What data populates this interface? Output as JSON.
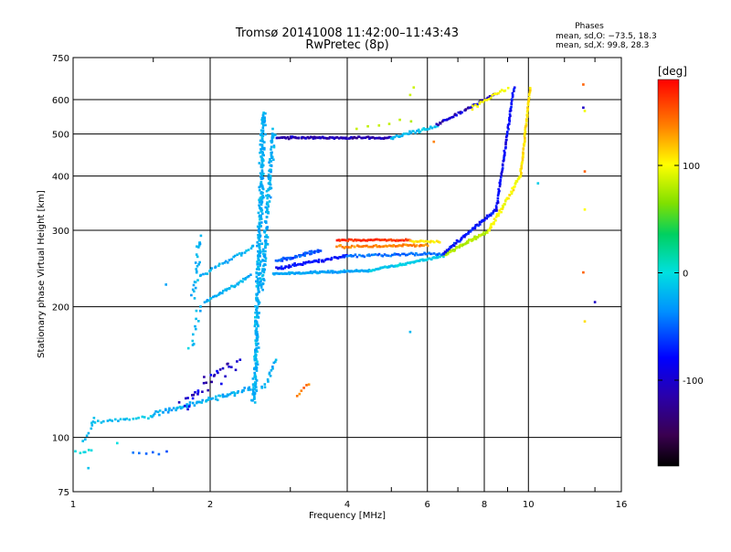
{
  "chart_data": {
    "type": "scatter",
    "title": "Tromsø 20141008 11:42:00–11:43:43",
    "subtitle": "RwPretec (8p)",
    "xlabel": "Frequency [MHz]",
    "ylabel": "Stationary phase Virtual Height [km]",
    "x_scale": "log",
    "y_scale": "log",
    "xlim": [
      1,
      16
    ],
    "ylim": [
      75,
      750
    ],
    "x_ticks": [
      1,
      2,
      4,
      6,
      8,
      10,
      16
    ],
    "y_ticks": [
      75,
      100,
      200,
      300,
      400,
      500,
      600,
      750
    ],
    "grid": true,
    "phases": {
      "title": "Phases",
      "line_o": "mean, sd,O: −73.5, 18.3",
      "line_x": "mean, sd,X:  99.8, 28.3"
    },
    "colorbar": {
      "label": "[deg]",
      "range": [
        -180,
        180
      ],
      "ticks": [
        100,
        0,
        -100
      ]
    },
    "trace_segments": [
      {
        "from": [
          1.05,
          97
        ],
        "to": [
          1.12,
          111
        ],
        "phase": -40,
        "n": 8,
        "spread": 0.015
      },
      {
        "from": [
          1.1,
          108
        ],
        "to": [
          1.5,
          112
        ],
        "phase": -35,
        "n": 22,
        "spread": 0.01
      },
      {
        "from": [
          1.5,
          113
        ],
        "to": [
          2.5,
          130
        ],
        "phase": -45,
        "n": 70,
        "spread": 0.012
      },
      {
        "from": [
          1.72,
          118
        ],
        "to": [
          2.3,
          150
        ],
        "phase": -110,
        "n": 35,
        "spread": 0.05
      },
      {
        "from": [
          1.85,
          210
        ],
        "to": [
          1.9,
          290
        ],
        "phase": -45,
        "n": 25,
        "spread": 0.03
      },
      {
        "from": [
          1.8,
          160
        ],
        "to": [
          1.92,
          200
        ],
        "phase": -40,
        "n": 12,
        "spread": 0.03
      },
      {
        "from": [
          1.95,
          205
        ],
        "to": [
          2.45,
          235
        ],
        "phase": -45,
        "n": 35,
        "spread": 0.008
      },
      {
        "from": [
          1.9,
          235
        ],
        "to": [
          2.5,
          275
        ],
        "phase": -45,
        "n": 30,
        "spread": 0.01
      },
      {
        "from": [
          2.5,
          120
        ],
        "to": [
          2.62,
          560
        ],
        "phase": -45,
        "n": 320,
        "spread": 0.02
      },
      {
        "from": [
          2.6,
          220
        ],
        "to": [
          2.75,
          510
        ],
        "phase": -45,
        "n": 140,
        "spread": 0.02
      },
      {
        "from": [
          2.62,
          130
        ],
        "to": [
          2.78,
          150
        ],
        "phase": -45,
        "n": 15,
        "spread": 0.02
      },
      {
        "from": [
          2.8,
          255
        ],
        "to": [
          3.5,
          270
        ],
        "phase": -75,
        "n": 45,
        "spread": 0.01
      },
      {
        "from": [
          2.8,
          245
        ],
        "to": [
          4.0,
          262
        ],
        "phase": -95,
        "n": 55,
        "spread": 0.008
      },
      {
        "from": [
          2.75,
          238
        ],
        "to": [
          4.5,
          242
        ],
        "phase": -50,
        "n": 90,
        "spread": 0.006
      },
      {
        "from": [
          4.5,
          242
        ],
        "to": [
          6.5,
          262
        ],
        "phase": -30,
        "n": 70,
        "spread": 0.006
      },
      {
        "from": [
          6.5,
          262
        ],
        "to": [
          8.2,
          300
        ],
        "phase": 70,
        "n": 55,
        "spread": 0.008
      },
      {
        "from": [
          8.2,
          300
        ],
        "to": [
          9.6,
          400
        ],
        "phase": 100,
        "n": 45,
        "spread": 0.01
      },
      {
        "from": [
          9.6,
          400
        ],
        "to": [
          10.1,
          640
        ],
        "phase": 110,
        "n": 55,
        "spread": 0.006
      },
      {
        "from": [
          4.0,
          262
        ],
        "to": [
          6.5,
          265
        ],
        "phase": -70,
        "n": 55,
        "spread": 0.008
      },
      {
        "from": [
          6.5,
          265
        ],
        "to": [
          8.5,
          335
        ],
        "phase": -95,
        "n": 60,
        "spread": 0.008
      },
      {
        "from": [
          8.5,
          335
        ],
        "to": [
          9.3,
          640
        ],
        "phase": -100,
        "n": 65,
        "spread": 0.006
      },
      {
        "from": [
          3.8,
          285
        ],
        "to": [
          5.5,
          285
        ],
        "phase": 165,
        "n": 50,
        "spread": 0.005
      },
      {
        "from": [
          3.8,
          275
        ],
        "to": [
          6.0,
          277
        ],
        "phase": 140,
        "n": 55,
        "spread": 0.006
      },
      {
        "from": [
          5.5,
          283
        ],
        "to": [
          6.4,
          282
        ],
        "phase": 110,
        "n": 18,
        "spread": 0.006
      },
      {
        "from": [
          2.8,
          490
        ],
        "to": [
          5.0,
          490
        ],
        "phase": -115,
        "n": 95,
        "spread": 0.006
      },
      {
        "from": [
          5.0,
          490
        ],
        "to": [
          6.3,
          520
        ],
        "phase": -40,
        "n": 35,
        "spread": 0.008
      },
      {
        "from": [
          4.2,
          515
        ],
        "to": [
          5.5,
          535
        ],
        "phase": 80,
        "n": 6,
        "spread": 0.02
      },
      {
        "from": [
          6.3,
          525
        ],
        "to": [
          8.5,
          620
        ],
        "phase": -110,
        "n": 45,
        "spread": 0.008
      },
      {
        "from": [
          7.5,
          575
        ],
        "to": [
          9.0,
          640
        ],
        "phase": 100,
        "n": 20,
        "spread": 0.01
      },
      {
        "from": [
          3.1,
          125
        ],
        "to": [
          3.3,
          133
        ],
        "phase": 140,
        "n": 6,
        "spread": 0.008
      },
      {
        "from": [
          1.02,
          92
        ],
        "to": [
          1.1,
          92
        ],
        "phase": -20,
        "n": 6,
        "spread": 0.02
      },
      {
        "from": [
          1.35,
          92
        ],
        "to": [
          1.6,
          92
        ],
        "phase": -70,
        "n": 6,
        "spread": 0.01
      }
    ],
    "outlier_points": [
      {
        "x": 13.2,
        "y": 650,
        "phase": 150
      },
      {
        "x": 13.3,
        "y": 565,
        "phase": 95
      },
      {
        "x": 13.2,
        "y": 575,
        "phase": -110
      },
      {
        "x": 13.3,
        "y": 410,
        "phase": 150
      },
      {
        "x": 13.3,
        "y": 335,
        "phase": 100
      },
      {
        "x": 13.2,
        "y": 240,
        "phase": 150
      },
      {
        "x": 13.3,
        "y": 185,
        "phase": 110
      },
      {
        "x": 14.0,
        "y": 205,
        "phase": -110
      },
      {
        "x": 5.5,
        "y": 175,
        "phase": -40
      },
      {
        "x": 1.6,
        "y": 225,
        "phase": -50
      },
      {
        "x": 5.6,
        "y": 640,
        "phase": 80
      },
      {
        "x": 5.5,
        "y": 615,
        "phase": 80
      },
      {
        "x": 10.5,
        "y": 385,
        "phase": -30
      },
      {
        "x": 1.3,
        "y": 110,
        "phase": -50
      },
      {
        "x": 1.08,
        "y": 85,
        "phase": -35
      },
      {
        "x": 1.25,
        "y": 97,
        "phase": -20
      },
      {
        "x": 6.2,
        "y": 480,
        "phase": 140
      }
    ]
  }
}
